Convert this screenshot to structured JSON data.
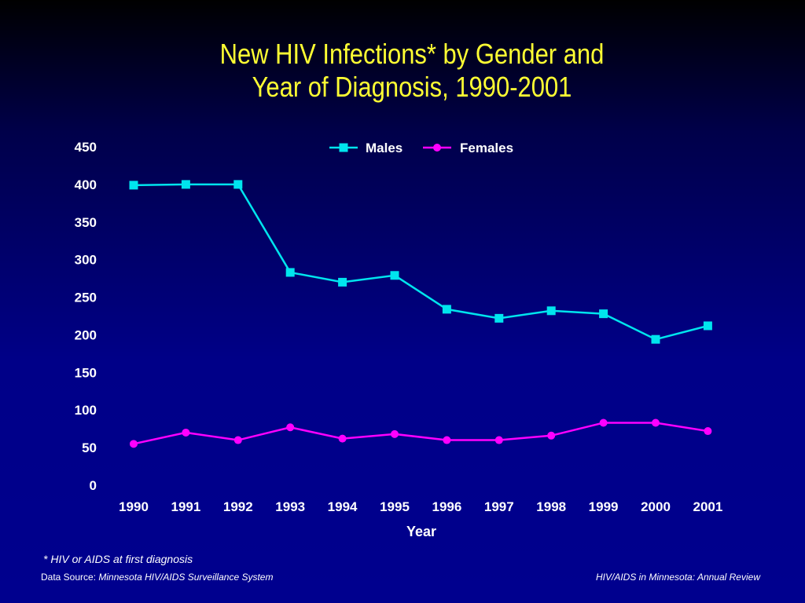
{
  "title_lines": [
    "New HIV Infections* by Gender and",
    "Year of Diagnosis, 1990-2001"
  ],
  "footnote": "* HIV or AIDS at first diagnosis",
  "source_prefix": "Data Source: ",
  "source_name": "Minnesota HIV/AIDS Surveillance System",
  "review": "HIV/AIDS in Minnesota: Annual Review",
  "colors": {
    "title": "#ffff33",
    "males": "#00e5ee",
    "females": "#ff00ff",
    "text": "#ffffff"
  },
  "chart_data": {
    "type": "line",
    "title": "New HIV Infections* by Gender and Year of Diagnosis, 1990-2001",
    "xlabel": "Year",
    "ylabel": "",
    "categories": [
      "1990",
      "1991",
      "1992",
      "1993",
      "1994",
      "1995",
      "1996",
      "1997",
      "1998",
      "1999",
      "2000",
      "2001"
    ],
    "ylim": [
      0,
      450
    ],
    "yticks": [
      0,
      50,
      100,
      150,
      200,
      250,
      300,
      350,
      400,
      450
    ],
    "grid": false,
    "legend_position": "top-center",
    "series": [
      {
        "name": "Males",
        "marker": "square",
        "color": "#00e5ee",
        "values": [
          399,
          400,
          400,
          283,
          270,
          279,
          234,
          222,
          232,
          228,
          194,
          212
        ]
      },
      {
        "name": "Females",
        "marker": "circle",
        "color": "#ff00ff",
        "values": [
          55,
          70,
          60,
          77,
          62,
          68,
          60,
          60,
          66,
          83,
          83,
          72
        ]
      }
    ]
  }
}
